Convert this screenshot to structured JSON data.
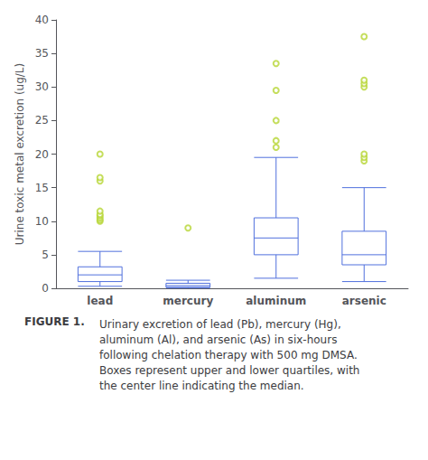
{
  "chart_data": {
    "type": "boxplot",
    "title": "FIGURE 1.",
    "subtitle": "Urinary excretion of lead (Pb), mercury (Hg),\naluminum (Al), and arsenic (As) in six-hours\nfollowing chelation therapy with 500 mg DMSA.\nBoxes represent upper and lower quartiles, with\nthe center line indicating the median.",
    "ylabel": "Urine toxic metal excretion (ug/L)",
    "categories": [
      "lead",
      "mercury",
      "aluminum",
      "arsenic"
    ],
    "boxes": [
      {
        "low": 0.3,
        "q1": 1.0,
        "median": 2.0,
        "q3": 3.2,
        "high": 5.5
      },
      {
        "low": 0.05,
        "q1": 0.15,
        "median": 0.4,
        "q3": 0.75,
        "high": 1.2
      },
      {
        "low": 1.5,
        "q1": 5.0,
        "median": 7.5,
        "q3": 10.5,
        "high": 19.5
      },
      {
        "low": 1.0,
        "q1": 3.5,
        "median": 5.0,
        "q3": 8.5,
        "high": 15.0
      }
    ],
    "fliers": [
      [
        10.0,
        10.2,
        10.5,
        10.8,
        11.0,
        11.5,
        16.0,
        16.5,
        20.0
      ],
      [
        9.0
      ],
      [
        21.0,
        22.0,
        25.0,
        29.5,
        33.5
      ],
      [
        19.0,
        19.5,
        20.0,
        30.0,
        30.5,
        31.0,
        37.5
      ]
    ],
    "ylim": [
      0,
      40
    ],
    "yticks": [
      0,
      5,
      10,
      15,
      20,
      25,
      30,
      35,
      40
    ],
    "grid": false
  }
}
